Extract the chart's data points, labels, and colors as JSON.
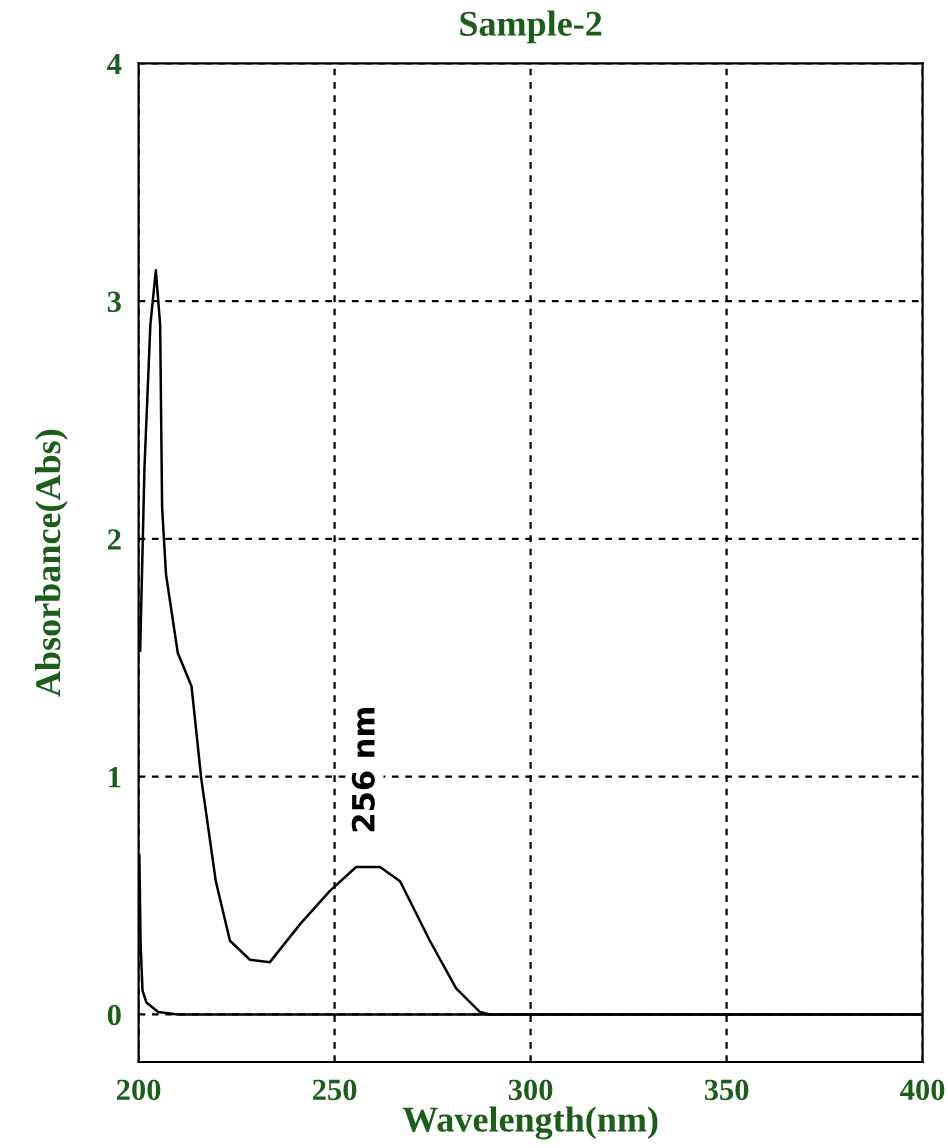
{
  "chart_data": {
    "type": "line",
    "title": "Sample-2",
    "xlabel": "Wavelength(nm)",
    "ylabel": "Absorbance(Abs)",
    "xlim": [
      200,
      400
    ],
    "ylim": [
      -0.2,
      4
    ],
    "xticks": [
      200,
      250,
      300,
      350,
      400
    ],
    "yticks": [
      0,
      1,
      2,
      3,
      4
    ],
    "grid": true,
    "line_style": "solid",
    "marker": "none",
    "series": [
      {
        "color": "#000000",
        "x": [
          200.4,
          201.5,
          203,
          204.4,
          205.5,
          206,
          207,
          210,
          213.5,
          216,
          219.7,
          223.3,
          228.4,
          233.5,
          241.2,
          248.8,
          255.5,
          261.6,
          266.7,
          274.3,
          281,
          287.1,
          289.6,
          300,
          350,
          400
        ],
        "values": [
          1.53,
          2.3,
          2.9,
          3.13,
          2.9,
          2.13,
          1.85,
          1.52,
          1.38,
          0.99,
          0.56,
          0.31,
          0.23,
          0.22,
          0.38,
          0.52,
          0.62,
          0.62,
          0.56,
          0.31,
          0.11,
          0.01,
          0,
          0,
          0,
          0
        ]
      },
      {
        "color": "#000000",
        "x": [
          200.2,
          200.5,
          201,
          202,
          205,
          210,
          250,
          300,
          350,
          400
        ],
        "values": [
          0.67,
          0.3,
          0.1,
          0.05,
          0.01,
          0,
          0,
          0,
          0,
          0
        ]
      }
    ],
    "annotations": [
      {
        "text": "256 nm",
        "x": 258,
        "y": 0.62
      }
    ]
  }
}
